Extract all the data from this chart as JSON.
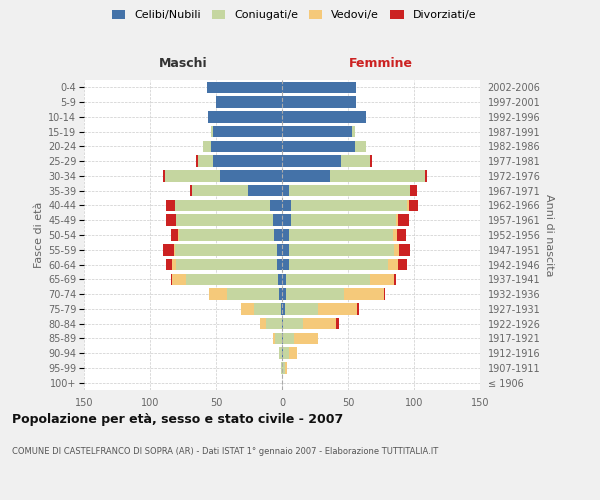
{
  "age_groups": [
    "100+",
    "95-99",
    "90-94",
    "85-89",
    "80-84",
    "75-79",
    "70-74",
    "65-69",
    "60-64",
    "55-59",
    "50-54",
    "45-49",
    "40-44",
    "35-39",
    "30-34",
    "25-29",
    "20-24",
    "15-19",
    "10-14",
    "5-9",
    "0-4"
  ],
  "birth_years": [
    "≤ 1906",
    "1907-1911",
    "1912-1916",
    "1917-1921",
    "1922-1926",
    "1927-1931",
    "1932-1936",
    "1937-1941",
    "1942-1946",
    "1947-1951",
    "1952-1956",
    "1957-1961",
    "1962-1966",
    "1967-1971",
    "1972-1976",
    "1977-1981",
    "1982-1986",
    "1987-1991",
    "1992-1996",
    "1997-2001",
    "2002-2006"
  ],
  "male": {
    "celibi": [
      0,
      0,
      0,
      0,
      0,
      1,
      2,
      3,
      4,
      4,
      6,
      7,
      9,
      26,
      47,
      52,
      54,
      52,
      56,
      50,
      57
    ],
    "coniugati": [
      0,
      1,
      2,
      5,
      12,
      20,
      40,
      70,
      76,
      77,
      72,
      73,
      72,
      42,
      42,
      12,
      6,
      2,
      0,
      0,
      0
    ],
    "vedovi": [
      0,
      0,
      0,
      2,
      5,
      10,
      13,
      10,
      3,
      1,
      1,
      0,
      0,
      0,
      0,
      0,
      0,
      0,
      0,
      0,
      0
    ],
    "divorziati": [
      0,
      0,
      0,
      0,
      0,
      0,
      0,
      1,
      5,
      8,
      5,
      8,
      7,
      2,
      1,
      1,
      0,
      0,
      0,
      0,
      0
    ]
  },
  "female": {
    "nubili": [
      0,
      0,
      1,
      1,
      1,
      2,
      3,
      3,
      5,
      5,
      5,
      7,
      7,
      5,
      36,
      45,
      55,
      53,
      64,
      56,
      56
    ],
    "coniugate": [
      0,
      2,
      4,
      8,
      15,
      25,
      44,
      64,
      75,
      80,
      79,
      79,
      88,
      92,
      72,
      22,
      9,
      2,
      0,
      0,
      0
    ],
    "vedove": [
      0,
      2,
      6,
      18,
      25,
      30,
      30,
      18,
      8,
      4,
      3,
      2,
      1,
      0,
      0,
      0,
      0,
      0,
      0,
      0,
      0
    ],
    "divorziate": [
      0,
      0,
      0,
      0,
      2,
      1,
      1,
      1,
      7,
      8,
      7,
      8,
      7,
      5,
      2,
      1,
      0,
      0,
      0,
      0,
      0
    ]
  },
  "colors": {
    "celibi": "#4472a8",
    "coniugati": "#c5d6a0",
    "vedovi": "#f5c97a",
    "divorziati": "#cc2222"
  },
  "xlim": 150,
  "title": "Popolazione per età, sesso e stato civile - 2007",
  "subtitle": "COMUNE DI CASTELFRANCO DI SOPRA (AR) - Dati ISTAT 1° gennaio 2007 - Elaborazione TUTTITALIA.IT",
  "ylabel_left": "Fasce di età",
  "ylabel_right": "Anni di nascita",
  "label_maschi": "Maschi",
  "label_femmine": "Femmine",
  "legend_labels": [
    "Celibi/Nubili",
    "Coniugati/e",
    "Vedovi/e",
    "Divorziati/e"
  ],
  "bg_color": "#f0f0f0",
  "plot_bg": "#ffffff"
}
